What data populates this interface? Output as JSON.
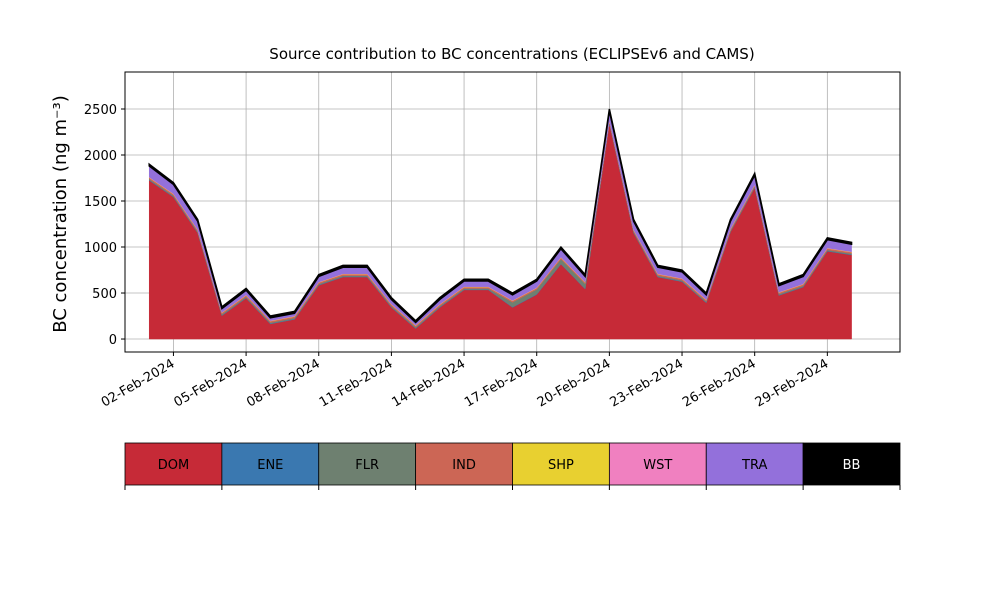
{
  "chart_data": {
    "type": "stacked-area",
    "title": "Source contribution to BC concentrations (ECLIPSEv6 and CAMS)",
    "y_label": "BC concentration (ng m⁻³)",
    "x": [
      "2024-02-01",
      "2024-02-02",
      "2024-02-03",
      "2024-02-04",
      "2024-02-05",
      "2024-02-06",
      "2024-02-07",
      "2024-02-08",
      "2024-02-09",
      "2024-02-10",
      "2024-02-11",
      "2024-02-12",
      "2024-02-13",
      "2024-02-14",
      "2024-02-15",
      "2024-02-16",
      "2024-02-17",
      "2024-02-18",
      "2024-02-19",
      "2024-02-20",
      "2024-02-21",
      "2024-02-22",
      "2024-02-23",
      "2024-02-24",
      "2024-02-25",
      "2024-02-26",
      "2024-02-27",
      "2024-02-28",
      "2024-02-29",
      "2024-03-01"
    ],
    "series": [
      {
        "name": "DOM",
        "color": "#c62a37",
        "values": [
          1724,
          1544,
          1154,
          254,
          444,
          164,
          214,
          584,
          674,
          674,
          344,
          114,
          344,
          534,
          534,
          344,
          484,
          814,
          544,
          2344,
          1154,
          674,
          624,
          394,
          1164,
          1644,
          474,
          564,
          954,
          914
        ]
      },
      {
        "name": "ENE",
        "color": "#3a78b0",
        "values": [
          5,
          5,
          5,
          5,
          5,
          5,
          5,
          5,
          5,
          5,
          5,
          5,
          5,
          5,
          5,
          5,
          5,
          5,
          5,
          5,
          5,
          5,
          5,
          5,
          5,
          5,
          5,
          5,
          5,
          5
        ]
      },
      {
        "name": "FLR",
        "color": "#6e8070",
        "values": [
          10,
          10,
          10,
          10,
          10,
          10,
          10,
          10,
          10,
          10,
          10,
          10,
          10,
          10,
          10,
          50,
          50,
          50,
          50,
          10,
          10,
          10,
          10,
          10,
          10,
          10,
          10,
          10,
          10,
          10
        ]
      },
      {
        "name": "IND",
        "color": "#cc6655",
        "values": [
          15,
          15,
          15,
          15,
          15,
          15,
          15,
          15,
          15,
          15,
          15,
          15,
          15,
          15,
          15,
          15,
          15,
          15,
          15,
          15,
          15,
          15,
          15,
          15,
          15,
          15,
          15,
          15,
          15,
          15
        ]
      },
      {
        "name": "SHP",
        "color": "#e8d030",
        "values": [
          3,
          3,
          3,
          3,
          3,
          3,
          3,
          3,
          3,
          3,
          3,
          3,
          3,
          3,
          3,
          3,
          3,
          3,
          3,
          3,
          3,
          3,
          3,
          3,
          3,
          3,
          3,
          3,
          3,
          3
        ]
      },
      {
        "name": "WST",
        "color": "#f080c0",
        "values": [
          3,
          3,
          3,
          3,
          3,
          3,
          3,
          3,
          3,
          3,
          3,
          3,
          3,
          3,
          3,
          3,
          3,
          3,
          3,
          3,
          3,
          3,
          3,
          3,
          3,
          3,
          3,
          3,
          3,
          3
        ]
      },
      {
        "name": "TRA",
        "color": "#9370db",
        "values": [
          120,
          100,
          90,
          40,
          50,
          30,
          30,
          60,
          70,
          70,
          50,
          30,
          50,
          60,
          60,
          60,
          70,
          90,
          60,
          100,
          90,
          70,
          70,
          50,
          80,
          100,
          70,
          80,
          90,
          80
        ]
      },
      {
        "name": "BB",
        "color": "#000000",
        "values": [
          20,
          20,
          20,
          20,
          20,
          20,
          20,
          20,
          20,
          20,
          20,
          20,
          20,
          20,
          20,
          20,
          20,
          20,
          20,
          20,
          20,
          20,
          20,
          20,
          20,
          20,
          20,
          20,
          20,
          20
        ]
      }
    ],
    "xlim": [
      "2024-01-31",
      "2024-03-03"
    ],
    "xticks": [
      {
        "value": "2024-02-02",
        "label": "02-Feb-2024"
      },
      {
        "value": "2024-02-05",
        "label": "05-Feb-2024"
      },
      {
        "value": "2024-02-08",
        "label": "08-Feb-2024"
      },
      {
        "value": "2024-02-11",
        "label": "11-Feb-2024"
      },
      {
        "value": "2024-02-14",
        "label": "14-Feb-2024"
      },
      {
        "value": "2024-02-17",
        "label": "17-Feb-2024"
      },
      {
        "value": "2024-02-20",
        "label": "20-Feb-2024"
      },
      {
        "value": "2024-02-23",
        "label": "23-Feb-2024"
      },
      {
        "value": "2024-02-26",
        "label": "26-Feb-2024"
      },
      {
        "value": "2024-02-29",
        "label": "29-Feb-2024"
      }
    ],
    "ylim": [
      -141,
      2902
    ],
    "yticks": [
      0,
      500,
      1000,
      1500,
      2000,
      2500
    ],
    "grid": true
  }
}
